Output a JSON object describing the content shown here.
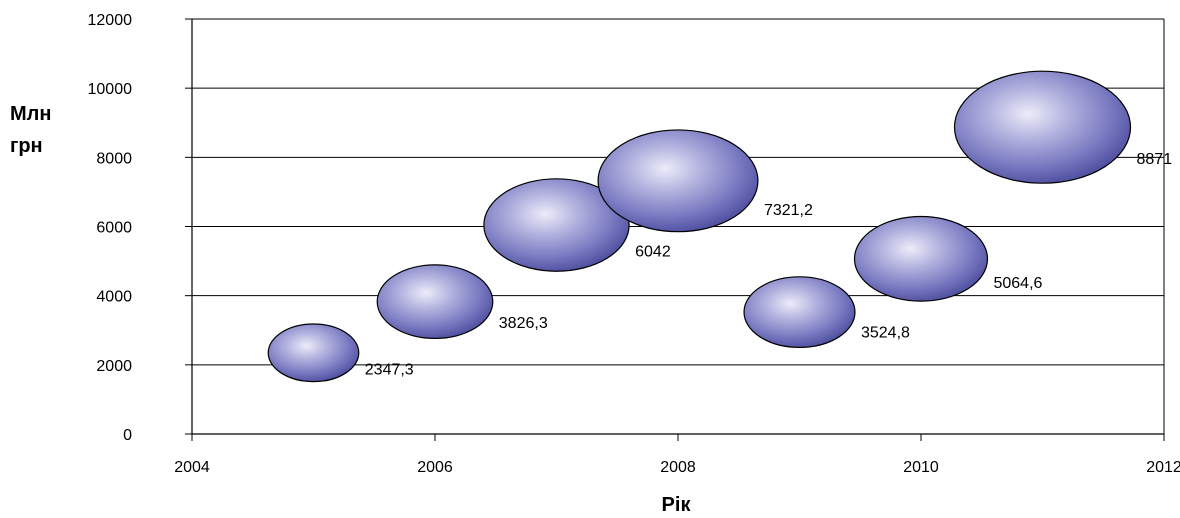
{
  "chart_data": {
    "type": "bubble",
    "xlabel": "Рік",
    "ylabel_lines": [
      "Млн",
      "грн"
    ],
    "xlim": [
      2004,
      2012
    ],
    "ylim": [
      0,
      12000
    ],
    "x_ticks": [
      "2004",
      "2006",
      "2008",
      "2010",
      "2012"
    ],
    "y_ticks": [
      "0",
      "2000",
      "4000",
      "6000",
      "8000",
      "10000",
      "12000"
    ],
    "grid": "horizontal",
    "bubble_color": "#5E5EA8",
    "points": [
      {
        "x": 2005,
        "y": 2347.3,
        "size": 2347.3,
        "label": "2347,3"
      },
      {
        "x": 2006,
        "y": 3826.3,
        "size": 3826.3,
        "label": "3826,3"
      },
      {
        "x": 2007,
        "y": 6042,
        "size": 6042,
        "label": "6042"
      },
      {
        "x": 2008,
        "y": 7321.2,
        "size": 7321.2,
        "label": "7321,2"
      },
      {
        "x": 2009,
        "y": 3524.8,
        "size": 3524.8,
        "label": "3524,8"
      },
      {
        "x": 2010,
        "y": 5064.6,
        "size": 5064.6,
        "label": "5064,6"
      },
      {
        "x": 2011,
        "y": 8871,
        "size": 8871,
        "label": "8871"
      }
    ]
  }
}
